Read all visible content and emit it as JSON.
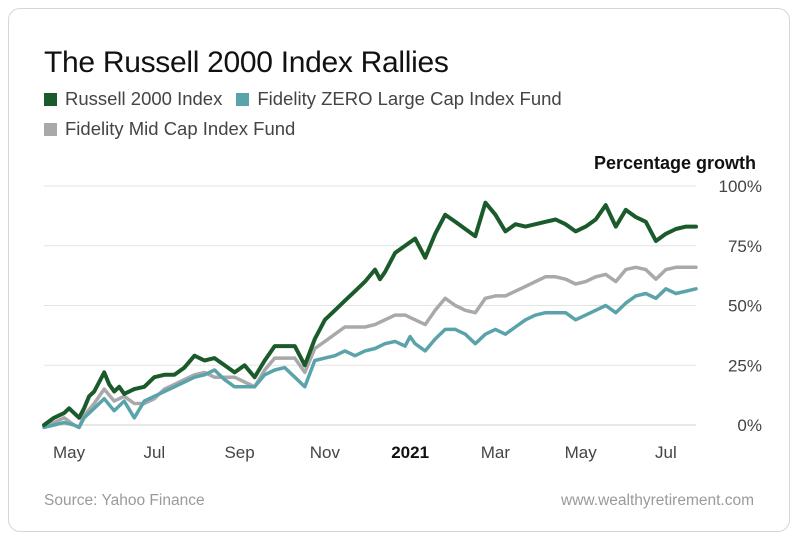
{
  "chart_data": {
    "type": "line",
    "title": "The Russell 2000 Index Rallies",
    "ylabel": "Percentage growth",
    "ylim": [
      0,
      100
    ],
    "yticks": [
      "0%",
      "25%",
      "50%",
      "75%",
      "100%"
    ],
    "ytick_values": [
      0,
      25,
      50,
      75,
      100
    ],
    "xrange": [
      0,
      65
    ],
    "xticks": [
      {
        "label": "May",
        "x": 2.5,
        "bold": false
      },
      {
        "label": "Jul",
        "x": 11,
        "bold": false
      },
      {
        "label": "Sep",
        "x": 19.5,
        "bold": false
      },
      {
        "label": "Nov",
        "x": 28,
        "bold": false
      },
      {
        "label": "2021",
        "x": 36.5,
        "bold": true
      },
      {
        "label": "Mar",
        "x": 45,
        "bold": false
      },
      {
        "label": "May",
        "x": 53.5,
        "bold": false
      },
      {
        "label": "Jul",
        "x": 62,
        "bold": false
      }
    ],
    "grid": true,
    "legend_position": "top-left",
    "series": [
      {
        "name": "Russell 2000 Index",
        "color": "#1b5a2a",
        "points": [
          [
            0,
            0
          ],
          [
            1,
            3
          ],
          [
            2,
            5
          ],
          [
            2.5,
            7
          ],
          [
            3,
            5
          ],
          [
            3.5,
            3
          ],
          [
            4,
            7
          ],
          [
            4.5,
            12
          ],
          [
            5,
            14
          ],
          [
            5.5,
            18
          ],
          [
            6,
            22
          ],
          [
            6.5,
            17
          ],
          [
            7,
            14
          ],
          [
            7.5,
            16
          ],
          [
            8,
            13
          ],
          [
            9,
            15
          ],
          [
            10,
            16
          ],
          [
            11,
            20
          ],
          [
            12,
            21
          ],
          [
            13,
            21
          ],
          [
            14,
            24
          ],
          [
            15,
            29
          ],
          [
            16,
            27
          ],
          [
            17,
            28
          ],
          [
            18,
            25
          ],
          [
            19,
            22
          ],
          [
            20,
            25
          ],
          [
            21,
            20
          ],
          [
            22,
            27
          ],
          [
            23,
            33
          ],
          [
            24,
            33
          ],
          [
            25,
            33
          ],
          [
            26,
            25
          ],
          [
            27,
            36
          ],
          [
            28,
            44
          ],
          [
            29,
            48
          ],
          [
            30,
            52
          ],
          [
            31,
            56
          ],
          [
            32,
            60
          ],
          [
            33,
            65
          ],
          [
            33.5,
            61
          ],
          [
            34,
            64
          ],
          [
            35,
            72
          ],
          [
            36,
            75
          ],
          [
            37,
            78
          ],
          [
            38,
            70
          ],
          [
            39,
            80
          ],
          [
            40,
            88
          ],
          [
            41,
            85
          ],
          [
            42,
            82
          ],
          [
            43,
            79
          ],
          [
            44,
            93
          ],
          [
            45,
            88
          ],
          [
            46,
            81
          ],
          [
            47,
            84
          ],
          [
            48,
            83
          ],
          [
            49,
            84
          ],
          [
            50,
            85
          ],
          [
            51,
            86
          ],
          [
            52,
            84
          ],
          [
            53,
            81
          ],
          [
            54,
            83
          ],
          [
            55,
            86
          ],
          [
            56,
            92
          ],
          [
            57,
            83
          ],
          [
            58,
            90
          ],
          [
            59,
            87
          ],
          [
            60,
            85
          ],
          [
            61,
            77
          ],
          [
            62,
            80
          ],
          [
            63,
            82
          ],
          [
            64,
            83
          ],
          [
            65,
            83
          ]
        ]
      },
      {
        "name": "Fidelity ZERO Large Cap Index Fund",
        "color": "#5ba3ab",
        "points": [
          [
            0,
            -1
          ],
          [
            1,
            0
          ],
          [
            2,
            1
          ],
          [
            3,
            0
          ],
          [
            3.5,
            -1
          ],
          [
            4,
            3
          ],
          [
            5,
            7
          ],
          [
            6,
            11
          ],
          [
            7,
            6
          ],
          [
            8,
            10
          ],
          [
            9,
            3
          ],
          [
            10,
            10
          ],
          [
            11,
            12
          ],
          [
            12,
            14
          ],
          [
            13,
            16
          ],
          [
            14,
            18
          ],
          [
            15,
            20
          ],
          [
            16,
            21
          ],
          [
            17,
            23
          ],
          [
            18,
            19
          ],
          [
            19,
            16
          ],
          [
            20,
            16
          ],
          [
            21,
            16
          ],
          [
            22,
            21
          ],
          [
            23,
            23
          ],
          [
            24,
            24
          ],
          [
            25,
            20
          ],
          [
            26,
            16
          ],
          [
            27,
            27
          ],
          [
            28,
            28
          ],
          [
            29,
            29
          ],
          [
            30,
            31
          ],
          [
            31,
            29
          ],
          [
            32,
            31
          ],
          [
            33,
            32
          ],
          [
            34,
            34
          ],
          [
            35,
            35
          ],
          [
            36,
            33
          ],
          [
            36.5,
            37
          ],
          [
            37,
            34
          ],
          [
            38,
            31
          ],
          [
            39,
            36
          ],
          [
            40,
            40
          ],
          [
            41,
            40
          ],
          [
            42,
            38
          ],
          [
            43,
            34
          ],
          [
            44,
            38
          ],
          [
            45,
            40
          ],
          [
            46,
            38
          ],
          [
            47,
            41
          ],
          [
            48,
            44
          ],
          [
            49,
            46
          ],
          [
            50,
            47
          ],
          [
            51,
            47
          ],
          [
            52,
            47
          ],
          [
            53,
            44
          ],
          [
            54,
            46
          ],
          [
            55,
            48
          ],
          [
            56,
            50
          ],
          [
            57,
            47
          ],
          [
            58,
            51
          ],
          [
            59,
            54
          ],
          [
            60,
            55
          ],
          [
            61,
            53
          ],
          [
            62,
            57
          ],
          [
            63,
            55
          ],
          [
            64,
            56
          ],
          [
            65,
            57
          ]
        ]
      },
      {
        "name": "Fidelity Mid Cap Index Fund",
        "color": "#a9a9ab",
        "points": [
          [
            0,
            -1
          ],
          [
            1,
            1
          ],
          [
            2,
            3
          ],
          [
            3,
            0
          ],
          [
            3.5,
            -1
          ],
          [
            4,
            4
          ],
          [
            5,
            9
          ],
          [
            6,
            15
          ],
          [
            7,
            10
          ],
          [
            8,
            12
          ],
          [
            9,
            9
          ],
          [
            10,
            9
          ],
          [
            11,
            11
          ],
          [
            12,
            15
          ],
          [
            13,
            17
          ],
          [
            14,
            19
          ],
          [
            15,
            21
          ],
          [
            16,
            22
          ],
          [
            17,
            20
          ],
          [
            18,
            20
          ],
          [
            19,
            20
          ],
          [
            20,
            18
          ],
          [
            21,
            16
          ],
          [
            22,
            23
          ],
          [
            23,
            28
          ],
          [
            24,
            28
          ],
          [
            25,
            28
          ],
          [
            26,
            22
          ],
          [
            27,
            32
          ],
          [
            28,
            35
          ],
          [
            29,
            38
          ],
          [
            30,
            41
          ],
          [
            31,
            41
          ],
          [
            32,
            41
          ],
          [
            33,
            42
          ],
          [
            34,
            44
          ],
          [
            35,
            46
          ],
          [
            36,
            46
          ],
          [
            37,
            44
          ],
          [
            38,
            42
          ],
          [
            39,
            48
          ],
          [
            40,
            53
          ],
          [
            41,
            50
          ],
          [
            42,
            48
          ],
          [
            43,
            47
          ],
          [
            44,
            53
          ],
          [
            45,
            54
          ],
          [
            46,
            54
          ],
          [
            47,
            56
          ],
          [
            48,
            58
          ],
          [
            49,
            60
          ],
          [
            50,
            62
          ],
          [
            51,
            62
          ],
          [
            52,
            61
          ],
          [
            53,
            59
          ],
          [
            54,
            60
          ],
          [
            55,
            62
          ],
          [
            56,
            63
          ],
          [
            57,
            60
          ],
          [
            58,
            65
          ],
          [
            59,
            66
          ],
          [
            60,
            65
          ],
          [
            61,
            61
          ],
          [
            62,
            65
          ],
          [
            63,
            66
          ],
          [
            64,
            66
          ],
          [
            65,
            66
          ]
        ]
      }
    ]
  },
  "footer": {
    "source": "Source: Yahoo Finance",
    "site": "www.wealthyretirement.com"
  }
}
